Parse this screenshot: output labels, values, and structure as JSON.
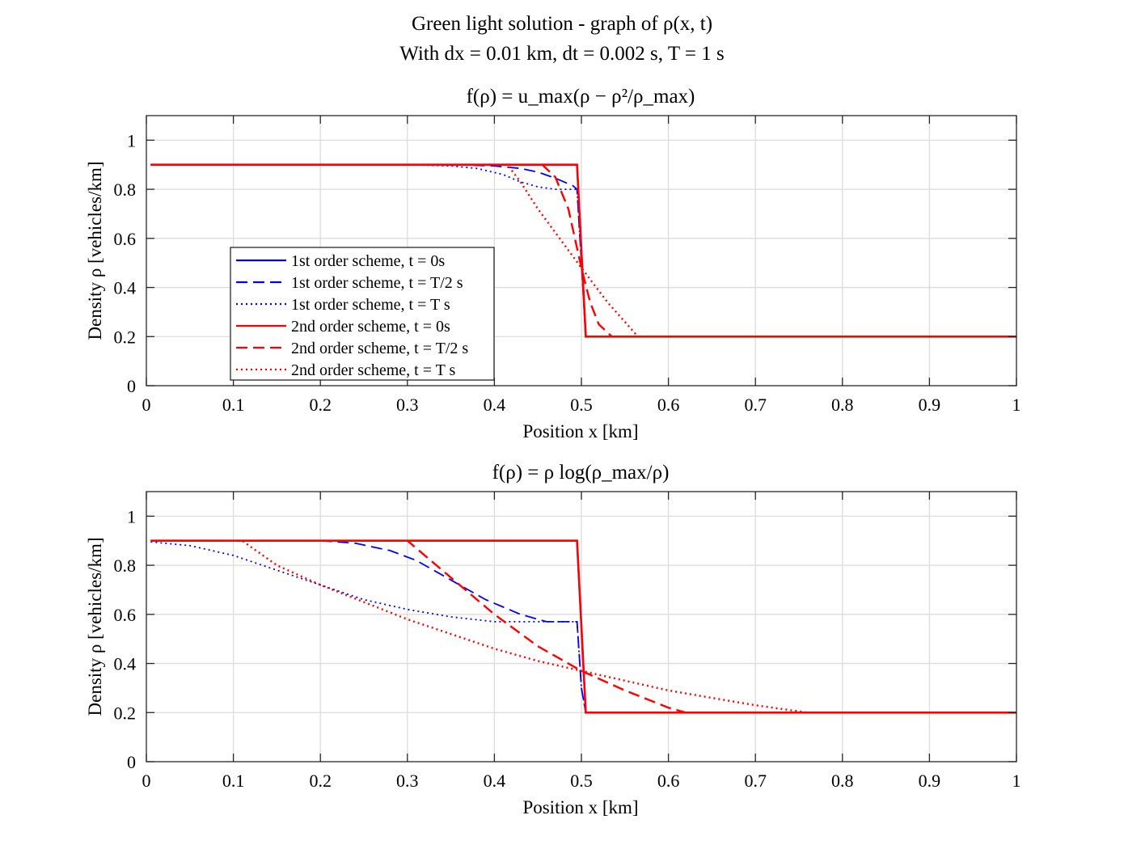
{
  "figure": {
    "title_line1": "Green light solution - graph of ρ(x, t)",
    "title_line2": "With dx = 0.01 km, dt = 0.002 s, T = 1 s"
  },
  "chart_data": [
    {
      "type": "line",
      "title": "f(ρ) = u_max(ρ − ρ²/ρ_max)",
      "xlabel": "Position x [km]",
      "ylabel": "Density ρ [vehicles/km]",
      "xlim": [
        0,
        1
      ],
      "ylim": [
        0,
        1.1
      ],
      "xticks": [
        "0",
        "0.1",
        "0.2",
        "0.3",
        "0.4",
        "0.5",
        "0.6",
        "0.7",
        "0.8",
        "0.9",
        "1"
      ],
      "yticks": [
        "0",
        "0.2",
        "0.4",
        "0.6",
        "0.8",
        "1"
      ],
      "grid": true,
      "legend_position": "lower-left",
      "series": [
        {
          "name": "1st order scheme, t = 0s",
          "color": "#0000ff",
          "style": "solid",
          "x": [
            0.005,
            0.495,
            0.505,
            1.0
          ],
          "y": [
            0.9,
            0.9,
            0.2,
            0.2
          ]
        },
        {
          "name": "1st order scheme, t = T/2 s",
          "color": "#0000ff",
          "style": "dashed",
          "x": [
            0.005,
            0.35,
            0.4,
            0.43,
            0.45,
            0.47,
            0.49,
            0.495,
            0.5,
            0.505,
            1.0
          ],
          "y": [
            0.9,
            0.9,
            0.895,
            0.885,
            0.87,
            0.845,
            0.815,
            0.8,
            0.5,
            0.2,
            0.2
          ]
        },
        {
          "name": "1st order scheme, t = T s",
          "color": "#0000ff",
          "style": "dotted",
          "x": [
            0.005,
            0.3,
            0.35,
            0.38,
            0.41,
            0.43,
            0.45,
            0.47,
            0.49,
            0.495,
            0.5,
            0.505,
            1.0
          ],
          "y": [
            0.9,
            0.9,
            0.895,
            0.885,
            0.86,
            0.83,
            0.81,
            0.8,
            0.8,
            0.8,
            0.5,
            0.2,
            0.2
          ]
        },
        {
          "name": "2nd order scheme, t = 0s",
          "color": "#ff0000",
          "style": "solid",
          "x": [
            0.005,
            0.495,
            0.505,
            1.0
          ],
          "y": [
            0.9,
            0.9,
            0.2,
            0.2
          ]
        },
        {
          "name": "2nd order scheme, t = T/2 s",
          "color": "#ff0000",
          "style": "dashed",
          "x": [
            0.005,
            0.455,
            0.47,
            0.485,
            0.5,
            0.51,
            0.52,
            0.535,
            1.0
          ],
          "y": [
            0.9,
            0.9,
            0.85,
            0.72,
            0.48,
            0.34,
            0.25,
            0.2,
            0.2
          ]
        },
        {
          "name": "2nd order scheme, t = T s",
          "color": "#ff0000",
          "style": "dotted",
          "x": [
            0.005,
            0.415,
            0.43,
            0.45,
            0.5,
            0.53,
            0.565,
            1.0
          ],
          "y": [
            0.9,
            0.9,
            0.83,
            0.72,
            0.48,
            0.34,
            0.2,
            0.2
          ]
        }
      ]
    },
    {
      "type": "line",
      "title": "f(ρ) = ρ log(ρ_max/ρ)",
      "xlabel": "Position x [km]",
      "ylabel": "Density ρ [vehicles/km]",
      "xlim": [
        0,
        1
      ],
      "ylim": [
        0,
        1.1
      ],
      "xticks": [
        "0",
        "0.1",
        "0.2",
        "0.3",
        "0.4",
        "0.5",
        "0.6",
        "0.7",
        "0.8",
        "0.9",
        "1"
      ],
      "yticks": [
        "0",
        "0.2",
        "0.4",
        "0.6",
        "0.8",
        "1"
      ],
      "grid": true,
      "series": [
        {
          "name": "1st order scheme, t = 0s",
          "color": "#0000ff",
          "style": "solid",
          "x": [
            0.005,
            0.495,
            0.505,
            1.0
          ],
          "y": [
            0.9,
            0.9,
            0.2,
            0.2
          ]
        },
        {
          "name": "1st order scheme, t = T/2 s",
          "color": "#0000ff",
          "style": "dashed",
          "x": [
            0.005,
            0.2,
            0.24,
            0.28,
            0.31,
            0.35,
            0.39,
            0.43,
            0.46,
            0.495,
            0.5,
            0.505,
            1.0
          ],
          "y": [
            0.9,
            0.9,
            0.89,
            0.86,
            0.82,
            0.74,
            0.66,
            0.6,
            0.57,
            0.57,
            0.3,
            0.2,
            0.2
          ]
        },
        {
          "name": "1st order scheme, t = T s",
          "color": "#0000ff",
          "style": "dotted",
          "x": [
            0.005,
            0.05,
            0.1,
            0.15,
            0.2,
            0.25,
            0.3,
            0.35,
            0.4,
            0.45,
            0.495,
            0.5,
            0.505,
            1.0
          ],
          "y": [
            0.895,
            0.88,
            0.84,
            0.78,
            0.72,
            0.66,
            0.62,
            0.59,
            0.57,
            0.57,
            0.57,
            0.3,
            0.2,
            0.2
          ]
        },
        {
          "name": "2nd order scheme, t = 0s",
          "color": "#ff0000",
          "style": "solid",
          "x": [
            0.005,
            0.495,
            0.505,
            1.0
          ],
          "y": [
            0.9,
            0.9,
            0.2,
            0.2
          ]
        },
        {
          "name": "2nd order scheme, t = T/2 s",
          "color": "#ff0000",
          "style": "dashed",
          "x": [
            0.005,
            0.3,
            0.35,
            0.4,
            0.45,
            0.5,
            0.55,
            0.6,
            0.62,
            1.0
          ],
          "y": [
            0.9,
            0.9,
            0.75,
            0.6,
            0.47,
            0.37,
            0.29,
            0.22,
            0.2,
            0.2
          ]
        },
        {
          "name": "2nd order scheme, t = T s",
          "color": "#ff0000",
          "style": "dotted",
          "x": [
            0.005,
            0.11,
            0.15,
            0.2,
            0.25,
            0.3,
            0.35,
            0.4,
            0.45,
            0.5,
            0.55,
            0.6,
            0.65,
            0.7,
            0.76,
            1.0
          ],
          "y": [
            0.9,
            0.9,
            0.8,
            0.72,
            0.65,
            0.58,
            0.52,
            0.46,
            0.41,
            0.37,
            0.33,
            0.29,
            0.26,
            0.23,
            0.2,
            0.2
          ]
        }
      ]
    }
  ]
}
